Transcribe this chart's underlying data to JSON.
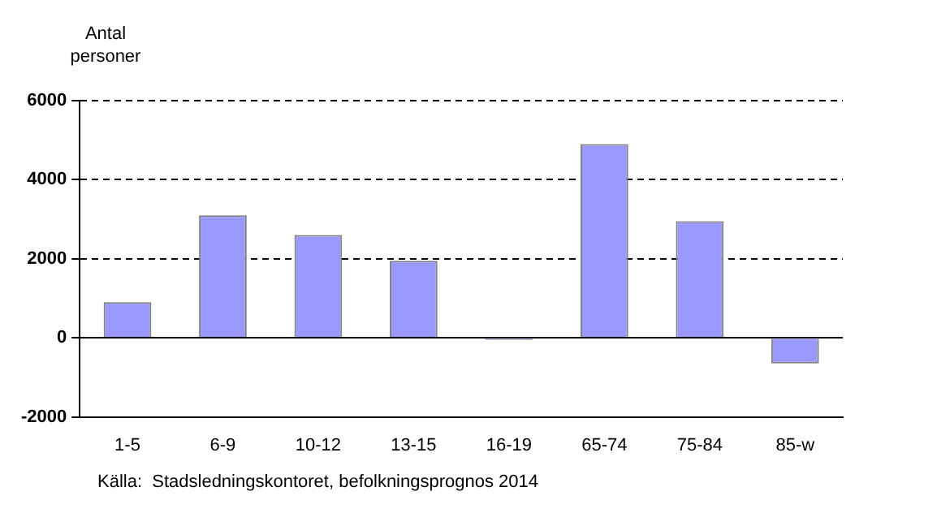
{
  "chart_data": {
    "type": "bar",
    "ylabel": "Antal personer",
    "categories": [
      "1-5",
      "6-9",
      "10-12",
      "13-15",
      "16-19",
      "65-74",
      "75-84",
      "85-w"
    ],
    "values": [
      900,
      3100,
      2600,
      1950,
      -50,
      4900,
      2950,
      -650
    ],
    "color": "#9999ff",
    "ylim": [
      -2000,
      6000
    ],
    "yticks": [
      -2000,
      0,
      2000,
      4000,
      6000
    ],
    "grid": "y",
    "annotations": [
      "Källa:  Stadsledningskontoret, befolkningsprognos 2014"
    ]
  }
}
